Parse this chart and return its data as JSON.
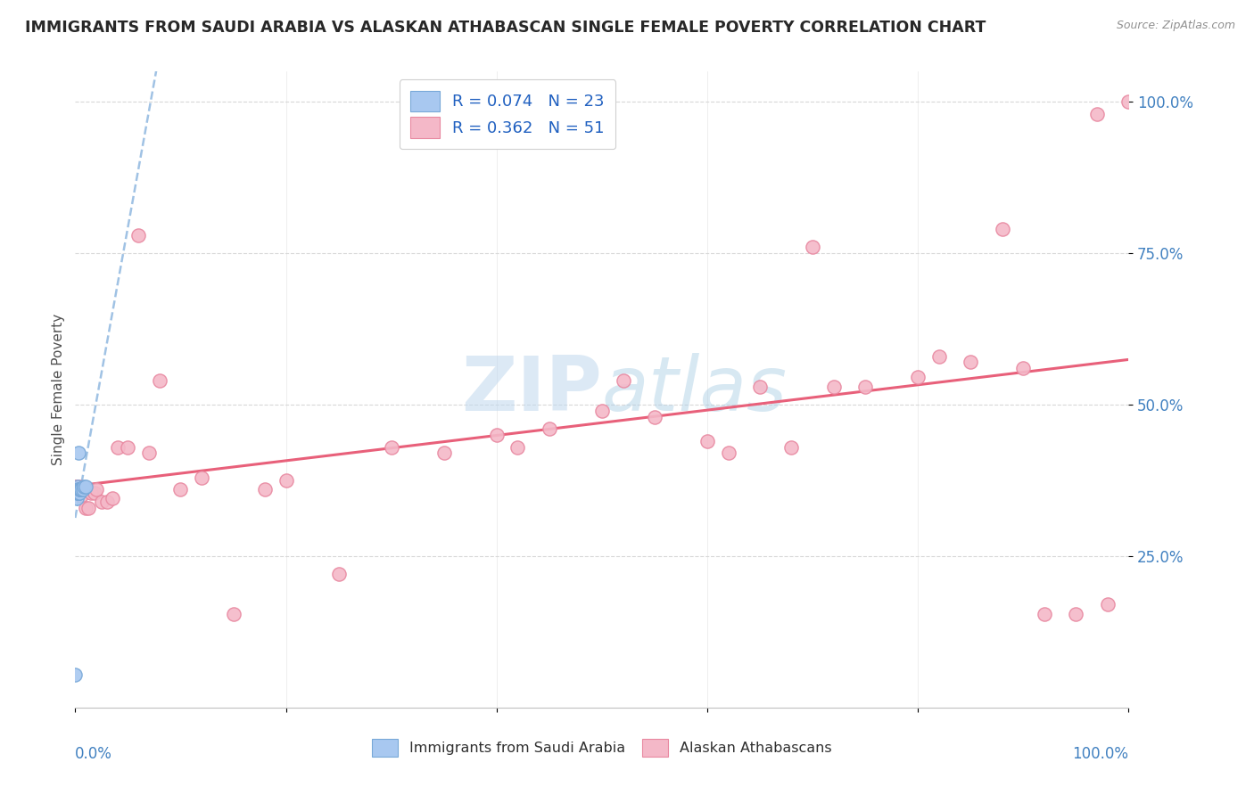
{
  "title": "IMMIGRANTS FROM SAUDI ARABIA VS ALASKAN ATHABASCAN SINGLE FEMALE POVERTY CORRELATION CHART",
  "source": "Source: ZipAtlas.com",
  "ylabel": "Single Female Poverty",
  "ytick_vals": [
    0.25,
    0.5,
    0.75,
    1.0
  ],
  "ytick_labels": [
    "25.0%",
    "50.0%",
    "75.0%",
    "100.0%"
  ],
  "legend1_label": "R = 0.074   N = 23",
  "legend2_label": "R = 0.362   N = 51",
  "scatter_blue_color": "#a8c8f0",
  "scatter_blue_edge": "#78a8d8",
  "scatter_pink_color": "#f4b8c8",
  "scatter_pink_edge": "#e888a0",
  "line_blue_color": "#90b8e0",
  "line_pink_color": "#e8607a",
  "watermark_color": "#c8dff0",
  "blue_x": [
    0.0,
    0.001,
    0.001,
    0.002,
    0.002,
    0.002,
    0.002,
    0.002,
    0.003,
    0.003,
    0.003,
    0.003,
    0.003,
    0.004,
    0.004,
    0.004,
    0.005,
    0.005,
    0.006,
    0.007,
    0.008,
    0.01,
    0.003
  ],
  "blue_y": [
    0.055,
    0.355,
    0.345,
    0.355,
    0.36,
    0.355,
    0.36,
    0.365,
    0.355,
    0.36,
    0.355,
    0.36,
    0.355,
    0.36,
    0.355,
    0.36,
    0.36,
    0.36,
    0.36,
    0.36,
    0.365,
    0.365,
    0.42
  ],
  "pink_x": [
    0.0,
    0.001,
    0.002,
    0.003,
    0.004,
    0.006,
    0.008,
    0.01,
    0.012,
    0.015,
    0.018,
    0.02,
    0.025,
    0.03,
    0.035,
    0.04,
    0.05,
    0.06,
    0.07,
    0.08,
    0.1,
    0.12,
    0.15,
    0.18,
    0.2,
    0.25,
    0.3,
    0.35,
    0.4,
    0.42,
    0.45,
    0.5,
    0.52,
    0.55,
    0.6,
    0.62,
    0.65,
    0.68,
    0.7,
    0.72,
    0.75,
    0.8,
    0.82,
    0.85,
    0.88,
    0.9,
    0.92,
    0.95,
    0.97,
    0.98,
    1.0
  ],
  "pink_y": [
    0.365,
    0.365,
    0.36,
    0.36,
    0.365,
    0.35,
    0.36,
    0.33,
    0.33,
    0.355,
    0.355,
    0.36,
    0.34,
    0.34,
    0.345,
    0.43,
    0.43,
    0.78,
    0.42,
    0.54,
    0.36,
    0.38,
    0.155,
    0.36,
    0.375,
    0.22,
    0.43,
    0.42,
    0.45,
    0.43,
    0.46,
    0.49,
    0.54,
    0.48,
    0.44,
    0.42,
    0.53,
    0.43,
    0.76,
    0.53,
    0.53,
    0.545,
    0.58,
    0.57,
    0.79,
    0.56,
    0.155,
    0.155,
    0.98,
    0.17,
    1.0
  ],
  "xlim": [
    0.0,
    1.0
  ],
  "ylim": [
    0.0,
    1.05
  ]
}
